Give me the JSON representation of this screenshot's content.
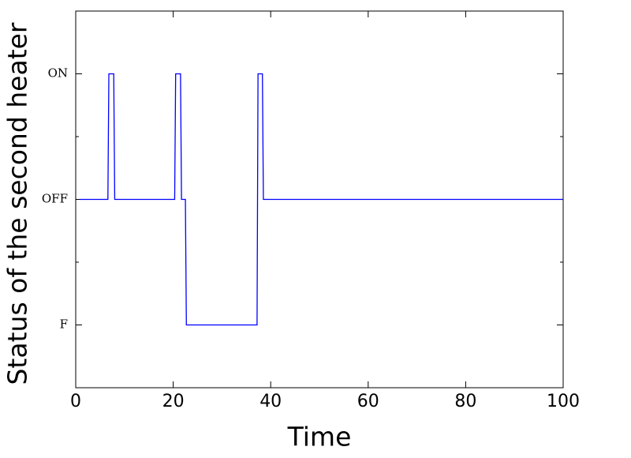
{
  "chart_data": {
    "type": "line",
    "xlabel": "Time",
    "ylabel": "Status of the second heater",
    "x": [
      0.8,
      6.6,
      6.8,
      7.8,
      8.0,
      20.3,
      20.5,
      21.5,
      21.7,
      22.5,
      22.7,
      37.2,
      37.4,
      38.3,
      38.5,
      100
    ],
    "series": [
      {
        "color": "#0000ff",
        "values": [
          1,
          1,
          2,
          2,
          1,
          1,
          2,
          2,
          1,
          1,
          0,
          0,
          2,
          2,
          1,
          1
        ]
      }
    ],
    "xlim": [
      0,
      100
    ],
    "xticks": [
      0,
      20,
      40,
      60,
      80,
      100
    ],
    "ylim": [
      -0.5,
      2.5
    ],
    "yticks": [
      {
        "value": 0,
        "label": "F"
      },
      {
        "value": 1,
        "label": "OFF"
      },
      {
        "value": 2,
        "label": "ON"
      }
    ],
    "yminorticks": [
      0.5,
      1.5
    ]
  }
}
